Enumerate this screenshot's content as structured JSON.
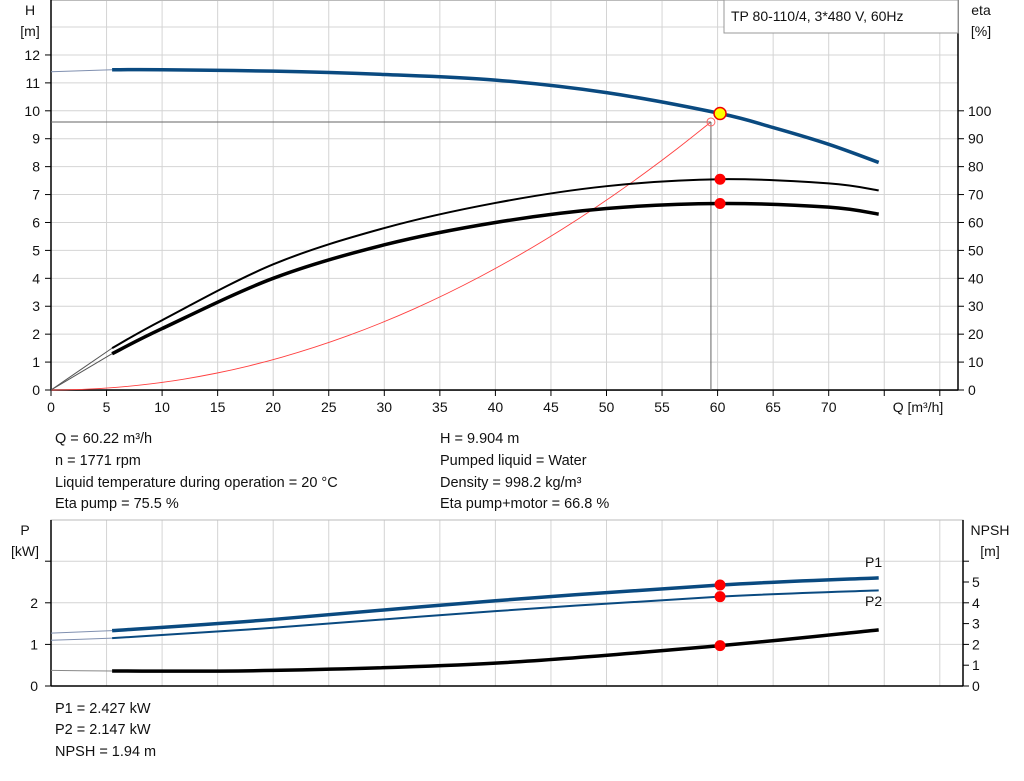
{
  "title_box": "TP 80-110/4, 3*480 V, 60Hz",
  "chart_data": [
    {
      "type": "line",
      "name": "pump-curve",
      "xlabel": "Q [m³/h]",
      "ylabel": "H\n[m]",
      "y2label": "eta\n[%]",
      "xlim": [
        0,
        80
      ],
      "ylim": [
        0,
        13
      ],
      "y2lim": [
        0,
        100
      ],
      "x_ticks": [
        0,
        5,
        10,
        15,
        20,
        25,
        30,
        35,
        40,
        45,
        50,
        55,
        60,
        65,
        70
      ],
      "y_ticks": [
        0,
        1,
        2,
        3,
        4,
        5,
        6,
        7,
        8,
        9,
        10,
        11,
        12
      ],
      "y2_ticks": [
        0,
        10,
        20,
        30,
        40,
        50,
        60,
        70,
        80,
        90,
        100
      ],
      "grid": true,
      "series": [
        {
          "axis": "H",
          "color": "#0a4a80",
          "x": [
            5.5,
            10,
            20,
            30,
            40,
            50,
            60.22,
            65,
            70,
            74.5
          ],
          "y": [
            11.47,
            11.47,
            11.42,
            11.3,
            11.1,
            10.65,
            9.904,
            9.4,
            8.8,
            8.15
          ],
          "extension": {
            "x": [
              0,
              5.5
            ],
            "y": [
              11.4,
              11.47
            ]
          }
        },
        {
          "axis": "eta",
          "color": "#000000",
          "x": [
            5.5,
            10,
            20,
            30,
            40,
            50,
            60.22,
            70,
            74.5
          ],
          "y": [
            15,
            25,
            45,
            58,
            67,
            73,
            75.5,
            74,
            71.5
          ],
          "extension": {
            "x": [
              0,
              5.5
            ],
            "y": [
              0,
              15
            ]
          }
        },
        {
          "axis": "eta",
          "color": "#000000",
          "x": [
            5.5,
            10,
            20,
            30,
            40,
            50,
            60.22,
            70,
            74.5
          ],
          "y": [
            13,
            22,
            40,
            52,
            60,
            65,
            66.8,
            65.5,
            63
          ],
          "extension": {
            "x": [
              0,
              5.5
            ],
            "y": [
              0,
              13
            ]
          }
        },
        {
          "axis": "H",
          "color": "#ff4040",
          "type": "system-curve",
          "x_end": 59.4,
          "y_end": 9.6
        }
      ],
      "duty_point": {
        "Q": 60.22,
        "H": 9.904,
        "eta_pump": 75.5,
        "eta_total": 66.8
      }
    },
    {
      "type": "line",
      "name": "power-npsh",
      "ylabel": "P\n[kW]",
      "y2label": "NPSH\n[m]",
      "xlim": [
        0,
        80
      ],
      "ylim": [
        0,
        4
      ],
      "y2lim": [
        0,
        8
      ],
      "y_ticks": [
        0,
        1,
        2
      ],
      "y2_ticks": [
        0,
        1,
        2,
        3,
        4,
        5
      ],
      "grid": true,
      "series": [
        {
          "name": "P1",
          "axis": "P",
          "color": "#0a4a80",
          "x": [
            0,
            5.5,
            20,
            40,
            60.22,
            74.5
          ],
          "y": [
            1.27,
            1.33,
            1.6,
            2.05,
            2.427,
            2.6
          ]
        },
        {
          "name": "P2",
          "axis": "P",
          "color": "#0a4a80",
          "x": [
            0,
            5.5,
            20,
            40,
            60.22,
            74.5
          ],
          "y": [
            1.1,
            1.15,
            1.4,
            1.8,
            2.147,
            2.3
          ]
        },
        {
          "axis": "NPSH",
          "color": "#000000",
          "x": [
            0,
            5.5,
            20,
            40,
            60.22,
            74.5
          ],
          "y": [
            0.75,
            0.72,
            0.75,
            1.1,
            1.94,
            2.7
          ]
        }
      ],
      "duty_point": {
        "Q": 60.22,
        "P1": 2.427,
        "P2": 2.147,
        "NPSH": 1.94
      }
    }
  ],
  "info_left": [
    "Q = 60.22 m³/h",
    "n = 1771 rpm",
    "Liquid temperature during operation = 20 °C",
    "Eta pump = 75.5 %"
  ],
  "info_right": [
    "H = 9.904 m",
    "Pumped liquid = Water",
    "Density = 998.2 kg/m³",
    "Eta pump+motor = 66.8 %"
  ],
  "info_bottom": [
    "P1 = 2.427 kW",
    "P2 = 2.147 kW",
    "NPSH = 1.94 m"
  ]
}
